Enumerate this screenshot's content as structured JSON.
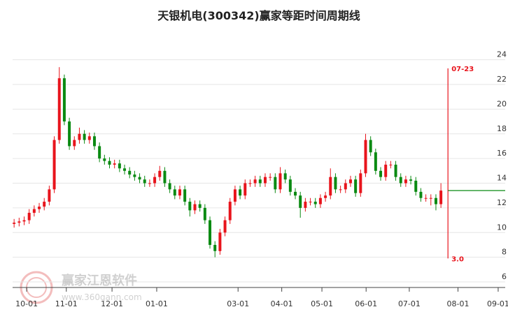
{
  "chart_data": {
    "type": "candlestick",
    "title": "天银机电(300342)赢家等距时间周期线",
    "open": [
      10.7,
      10.8,
      10.9,
      11.0,
      11.6,
      11.9,
      12.1,
      12.5,
      13.5,
      17.5,
      22.5,
      19,
      17,
      17.5,
      18,
      17.5,
      17.8,
      17,
      16,
      15.8,
      15.5,
      15.6,
      15.2,
      15,
      14.7,
      14.5,
      14.3,
      14,
      14,
      14.5,
      15,
      14,
      13.5,
      13,
      13.5,
      12.5,
      11.8,
      12.3,
      12,
      11,
      9,
      8.5,
      10,
      11,
      12.5,
      13.5,
      13,
      14,
      14,
      14.3,
      14,
      14.5,
      14.5,
      13.5,
      14.8,
      14.3,
      13.3,
      13,
      12,
      12.5,
      12.5,
      12.3,
      12.8,
      13,
      14.5,
      13.5,
      13.5,
      14,
      14.3,
      13.2,
      14.8,
      17.5,
      16.5,
      15,
      14.5,
      15.5,
      15.5,
      14.5,
      14,
      14.3,
      14.2,
      13.3,
      12.8,
      12.8,
      12.8,
      12.3
    ],
    "high": [
      11.1,
      11.2,
      11.3,
      11.9,
      12.2,
      12.4,
      12.8,
      13.8,
      17.8,
      23.4,
      22.8,
      19.3,
      17.8,
      18.5,
      18.3,
      18.1,
      18.1,
      17.3,
      16.3,
      16.1,
      15.9,
      15.9,
      15.5,
      15.3,
      15,
      14.8,
      14.6,
      14.3,
      14.8,
      15.4,
      15.3,
      14.3,
      13.8,
      13.8,
      13.8,
      12.8,
      12.6,
      12.6,
      12.3,
      11.3,
      9.3,
      10.3,
      11.3,
      12.8,
      13.8,
      13.8,
      14.3,
      14.3,
      14.6,
      14.6,
      14.8,
      14.8,
      14.8,
      15.3,
      15.1,
      14.6,
      13.6,
      13.3,
      12.8,
      12.8,
      12.8,
      13.1,
      13.3,
      15.2,
      14.8,
      13.8,
      14.3,
      14.6,
      14.6,
      15.1,
      18,
      17.8,
      16.8,
      15.3,
      15.8,
      15.8,
      15.8,
      14.8,
      14.6,
      14.6,
      14.5,
      13.6,
      13.1,
      13.1,
      13.1,
      14
    ],
    "low": [
      10.4,
      10.5,
      10.6,
      10.7,
      11.3,
      11.6,
      11.8,
      12.2,
      13.2,
      17.2,
      18.7,
      16.7,
      16.7,
      17.2,
      17.2,
      17.2,
      16.7,
      15.7,
      15.5,
      15.2,
      15.2,
      14.9,
      14.7,
      14.4,
      14.2,
      14,
      13.7,
      13.7,
      13.7,
      14.2,
      13.7,
      13.2,
      12.7,
      12.7,
      12.2,
      11.3,
      11.5,
      11.7,
      10.7,
      8.7,
      8.0,
      8.2,
      9.7,
      10.7,
      12.2,
      12.7,
      12.7,
      13.7,
      13.7,
      13.7,
      13.7,
      14.2,
      13.2,
      13.2,
      14,
      13,
      12.7,
      11.2,
      11.7,
      12.2,
      12,
      12,
      12.5,
      12.7,
      13.2,
      13.2,
      13.2,
      13.7,
      12.9,
      12.9,
      14.5,
      16.2,
      14.7,
      14.2,
      14.2,
      15.2,
      14.2,
      13.7,
      13.7,
      13.9,
      13,
      12.5,
      12.5,
      12.2,
      11.8,
      12
    ],
    "close": [
      10.8,
      10.9,
      11.0,
      11.6,
      11.9,
      12.1,
      12.5,
      13.5,
      17.5,
      22.5,
      19,
      17,
      17.5,
      18,
      17.5,
      17.8,
      17,
      16,
      15.8,
      15.5,
      15.6,
      15.2,
      15,
      14.7,
      14.5,
      14.3,
      14,
      14,
      14.5,
      15,
      14,
      13.5,
      13,
      13.5,
      12.5,
      11.8,
      12.3,
      12,
      11,
      9,
      8.5,
      10,
      11,
      12.5,
      13.5,
      13,
      14,
      14,
      14.3,
      14,
      14.5,
      14.5,
      13.5,
      14.8,
      14.3,
      13.3,
      13,
      12,
      12.5,
      12.5,
      12.3,
      12.8,
      13,
      14.5,
      13.5,
      13.5,
      14,
      14.3,
      13.2,
      14.8,
      17.5,
      16.5,
      15,
      14.5,
      15.5,
      15.5,
      14.5,
      14,
      14.3,
      14.2,
      13.3,
      12.8,
      12.8,
      12.8,
      12.3,
      13.4
    ],
    "up_color": "#e8141c",
    "down_color": "#0a8a12",
    "xlim": [
      -0.3,
      97.8
    ],
    "xticks": [
      {
        "value": 2.5,
        "label": "10-01"
      },
      {
        "value": 10.4,
        "label": "11-01"
      },
      {
        "value": 19.5,
        "label": "12-01"
      },
      {
        "value": 28.4,
        "label": "01-01"
      },
      {
        "value": 44.6,
        "label": "03-01"
      },
      {
        "value": 53.3,
        "label": "04-01"
      },
      {
        "value": 61.3,
        "label": "05-01"
      },
      {
        "value": 70.1,
        "label": "06-01"
      },
      {
        "value": 78.7,
        "label": "07-01"
      },
      {
        "value": 88.4,
        "label": "08-01"
      },
      {
        "value": 96.4,
        "label": "09-01"
      }
    ],
    "ylim": [
      5.55,
      25.9
    ],
    "yticks": [
      6,
      8,
      10,
      12,
      14,
      16,
      18,
      20,
      22,
      24
    ],
    "grid": true,
    "cycle_line": {
      "x": 86.4,
      "top": 23.3,
      "bottom": 7.9,
      "top_label": "07-23",
      "bottom_label": "3.0",
      "color": "#e8141c"
    },
    "level_line": {
      "value": 13.4,
      "x_start": 86.4,
      "color": "#0a8a12"
    },
    "watermark": [
      "赢家江恩软件",
      "www.360gann.com"
    ]
  }
}
